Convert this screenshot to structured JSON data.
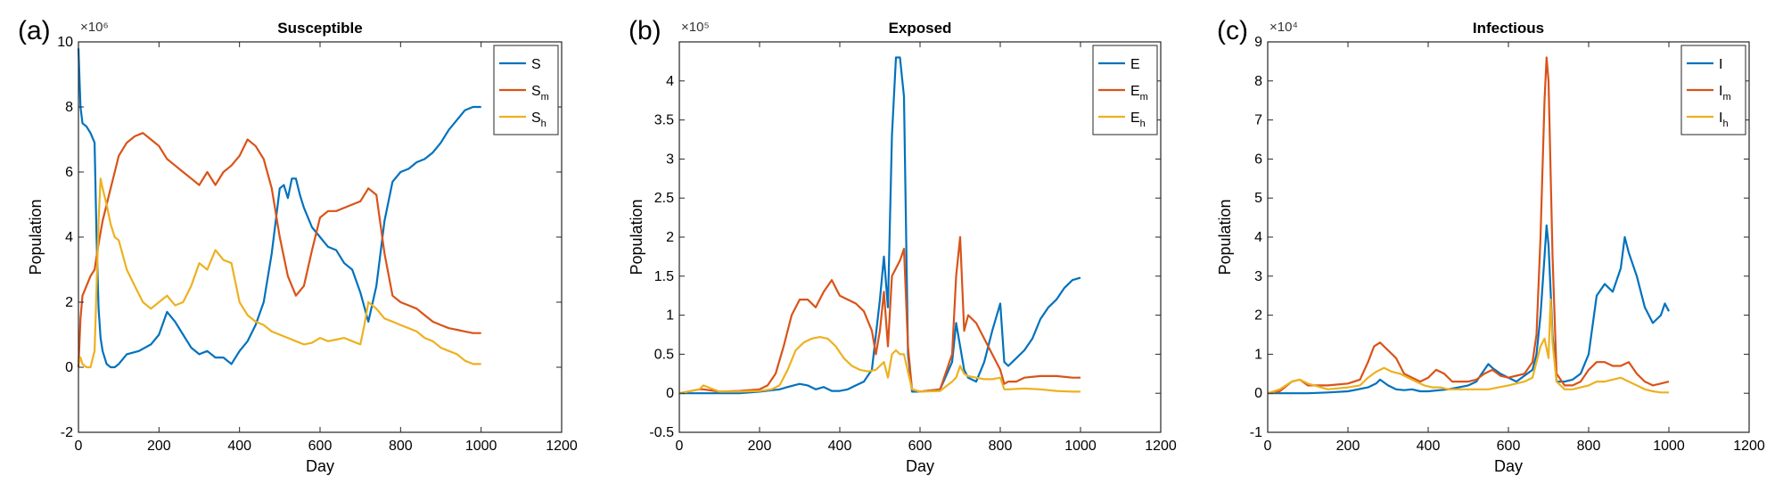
{
  "colors": {
    "s1": "#0072BD",
    "s2": "#D95319",
    "s3": "#EDB120"
  },
  "chart_data": [
    {
      "type": "line",
      "panel_label": "(a)",
      "title": "Susceptible",
      "xlabel": "Day",
      "ylabel": "Population",
      "exponent": "×10⁶",
      "xlim": [
        0,
        1200
      ],
      "ylim": [
        -2,
        10
      ],
      "xticks": [
        0,
        200,
        400,
        600,
        800,
        1000,
        1200
      ],
      "yticks": [
        -2,
        0,
        2,
        4,
        6,
        8,
        10
      ],
      "yticklabels": [
        "-2",
        "0",
        "2",
        "4",
        "6",
        "8",
        "10"
      ],
      "legend_position": "top-right",
      "series": [
        {
          "name": "S",
          "sub": "",
          "x": [
            0,
            5,
            10,
            20,
            30,
            40,
            45,
            50,
            55,
            60,
            70,
            80,
            90,
            100,
            120,
            150,
            180,
            200,
            220,
            240,
            260,
            280,
            300,
            320,
            340,
            360,
            380,
            400,
            420,
            440,
            460,
            480,
            500,
            510,
            520,
            530,
            540,
            550,
            560,
            580,
            600,
            620,
            640,
            660,
            680,
            700,
            720,
            740,
            760,
            780,
            800,
            820,
            840,
            860,
            880,
            900,
            920,
            940,
            960,
            980,
            1000
          ],
          "y": [
            9.8,
            8,
            7.5,
            7.4,
            7.2,
            6.9,
            4,
            1.8,
            0.9,
            0.5,
            0.1,
            0,
            0,
            0.1,
            0.4,
            0.5,
            0.7,
            1,
            1.7,
            1.4,
            1,
            0.6,
            0.4,
            0.5,
            0.3,
            0.3,
            0.1,
            0.5,
            0.8,
            1.3,
            2,
            3.5,
            5.5,
            5.6,
            5.2,
            5.8,
            5.8,
            5.3,
            4.9,
            4.3,
            4,
            3.7,
            3.6,
            3.2,
            3,
            2.3,
            1.4,
            2.5,
            4.5,
            5.7,
            6,
            6.1,
            6.3,
            6.4,
            6.6,
            6.9,
            7.3,
            7.6,
            7.9,
            8,
            8
          ]
        },
        {
          "name": "S",
          "sub": "m",
          "x": [
            0,
            5,
            10,
            20,
            30,
            40,
            50,
            60,
            70,
            80,
            90,
            100,
            120,
            140,
            160,
            180,
            200,
            220,
            240,
            260,
            280,
            300,
            320,
            340,
            360,
            380,
            400,
            420,
            440,
            460,
            480,
            500,
            520,
            540,
            560,
            580,
            600,
            620,
            640,
            660,
            680,
            700,
            720,
            740,
            760,
            780,
            800,
            820,
            840,
            860,
            880,
            900,
            920,
            940,
            960,
            980,
            1000
          ],
          "y": [
            0,
            1.5,
            2.2,
            2.5,
            2.8,
            3,
            3.8,
            4.5,
            5,
            5.5,
            6,
            6.5,
            6.9,
            7.1,
            7.2,
            7,
            6.8,
            6.4,
            6.2,
            6,
            5.8,
            5.6,
            6,
            5.6,
            6,
            6.2,
            6.5,
            7,
            6.8,
            6.4,
            5.5,
            4,
            2.8,
            2.2,
            2.5,
            3.6,
            4.6,
            4.8,
            4.8,
            4.9,
            5,
            5.1,
            5.5,
            5.3,
            3.5,
            2.2,
            2,
            1.9,
            1.8,
            1.6,
            1.4,
            1.3,
            1.2,
            1.15,
            1.1,
            1.05,
            1.05
          ]
        },
        {
          "name": "S",
          "sub": "h",
          "x": [
            0,
            5,
            10,
            20,
            30,
            40,
            50,
            55,
            60,
            70,
            80,
            90,
            100,
            120,
            140,
            160,
            180,
            200,
            220,
            240,
            260,
            280,
            300,
            320,
            340,
            360,
            380,
            400,
            420,
            440,
            460,
            480,
            500,
            520,
            540,
            560,
            580,
            600,
            620,
            640,
            660,
            680,
            700,
            710,
            720,
            740,
            760,
            780,
            800,
            820,
            840,
            860,
            880,
            900,
            920,
            940,
            960,
            980,
            1000
          ],
          "y": [
            0.1,
            0.3,
            0.1,
            0,
            0,
            0.5,
            4.5,
            5.8,
            5.5,
            5,
            4.4,
            4,
            3.9,
            3,
            2.5,
            2,
            1.8,
            2,
            2.2,
            1.9,
            2,
            2.5,
            3.2,
            3,
            3.6,
            3.3,
            3.2,
            2,
            1.6,
            1.4,
            1.3,
            1.1,
            1,
            0.9,
            0.8,
            0.7,
            0.75,
            0.9,
            0.8,
            0.85,
            0.9,
            0.8,
            0.7,
            1.3,
            2,
            1.8,
            1.5,
            1.4,
            1.3,
            1.2,
            1.1,
            0.9,
            0.8,
            0.6,
            0.5,
            0.4,
            0.2,
            0.1,
            0.1
          ]
        }
      ]
    },
    {
      "type": "line",
      "panel_label": "(b)",
      "title": "Exposed",
      "xlabel": "Day",
      "ylabel": "Population",
      "exponent": "×10⁵",
      "xlim": [
        0,
        1200
      ],
      "ylim": [
        -0.5,
        4.5
      ],
      "xticks": [
        0,
        200,
        400,
        600,
        800,
        1000,
        1200
      ],
      "yticks": [
        -0.5,
        0,
        0.5,
        1,
        1.5,
        2,
        2.5,
        3,
        3.5,
        4
      ],
      "yticklabels": [
        "-0.5",
        "0",
        "0.5",
        "1",
        "1.5",
        "2",
        "2.5",
        "3",
        "3.5",
        "4"
      ],
      "legend_position": "top-right",
      "series": [
        {
          "name": "E",
          "sub": "",
          "x": [
            0,
            50,
            100,
            150,
            200,
            250,
            270,
            300,
            320,
            340,
            360,
            380,
            400,
            420,
            440,
            460,
            480,
            500,
            510,
            520,
            530,
            540,
            550,
            560,
            570,
            580,
            600,
            650,
            680,
            690,
            700,
            710,
            720,
            740,
            760,
            780,
            800,
            810,
            820,
            840,
            860,
            880,
            900,
            920,
            940,
            960,
            980,
            1000
          ],
          "y": [
            0,
            0,
            0,
            0,
            0.02,
            0.05,
            0.08,
            0.12,
            0.1,
            0.05,
            0.08,
            0.03,
            0.03,
            0.05,
            0.1,
            0.15,
            0.3,
            1.2,
            1.75,
            1.1,
            3.3,
            4.3,
            4.3,
            3.8,
            0.5,
            0.02,
            0.02,
            0.05,
            0.4,
            0.9,
            0.6,
            0.3,
            0.2,
            0.15,
            0.4,
            0.8,
            1.15,
            0.4,
            0.35,
            0.45,
            0.55,
            0.7,
            0.95,
            1.1,
            1.2,
            1.35,
            1.45,
            1.48
          ]
        },
        {
          "name": "E",
          "sub": "m",
          "x": [
            0,
            50,
            60,
            100,
            150,
            200,
            220,
            240,
            260,
            280,
            300,
            320,
            340,
            360,
            380,
            400,
            420,
            440,
            460,
            480,
            490,
            500,
            510,
            520,
            530,
            540,
            550,
            560,
            570,
            580,
            600,
            650,
            680,
            690,
            700,
            710,
            720,
            740,
            760,
            780,
            800,
            810,
            820,
            840,
            860,
            900,
            940,
            980,
            1000
          ],
          "y": [
            0,
            0.05,
            0.05,
            0.02,
            0.03,
            0.05,
            0.1,
            0.25,
            0.6,
            1,
            1.2,
            1.2,
            1.1,
            1.3,
            1.45,
            1.25,
            1.2,
            1.15,
            1.05,
            0.8,
            0.5,
            0.8,
            1.3,
            0.6,
            1.5,
            1.6,
            1.7,
            1.85,
            0.6,
            0.05,
            0.02,
            0.05,
            0.5,
            1.5,
            2,
            0.8,
            1,
            0.9,
            0.7,
            0.5,
            0.3,
            0.12,
            0.15,
            0.15,
            0.2,
            0.22,
            0.22,
            0.2,
            0.2
          ]
        },
        {
          "name": "E",
          "sub": "h",
          "x": [
            0,
            50,
            60,
            100,
            150,
            200,
            230,
            250,
            270,
            290,
            310,
            330,
            350,
            370,
            390,
            410,
            430,
            450,
            470,
            490,
            500,
            510,
            520,
            530,
            540,
            550,
            560,
            580,
            600,
            650,
            680,
            690,
            700,
            710,
            720,
            740,
            760,
            780,
            800,
            810,
            820,
            860,
            900,
            940,
            980,
            1000
          ],
          "y": [
            0,
            0.05,
            0.1,
            0.02,
            0.02,
            0.03,
            0.05,
            0.1,
            0.3,
            0.55,
            0.65,
            0.7,
            0.72,
            0.7,
            0.6,
            0.45,
            0.35,
            0.3,
            0.28,
            0.3,
            0.35,
            0.4,
            0.2,
            0.5,
            0.55,
            0.5,
            0.5,
            0.05,
            0.02,
            0.03,
            0.15,
            0.2,
            0.35,
            0.25,
            0.22,
            0.2,
            0.18,
            0.18,
            0.2,
            0.05,
            0.05,
            0.06,
            0.05,
            0.03,
            0.02,
            0.02
          ]
        }
      ]
    },
    {
      "type": "line",
      "panel_label": "(c)",
      "title": "Infectious",
      "xlabel": "Day",
      "ylabel": "Population",
      "exponent": "×10⁴",
      "xlim": [
        0,
        1200
      ],
      "ylim": [
        -1,
        9
      ],
      "xticks": [
        0,
        200,
        400,
        600,
        800,
        1000,
        1200
      ],
      "yticks": [
        -1,
        0,
        1,
        2,
        3,
        4,
        5,
        6,
        7,
        8,
        9
      ],
      "yticklabels": [
        "-1",
        "0",
        "1",
        "2",
        "3",
        "4",
        "5",
        "6",
        "7",
        "8",
        "9"
      ],
      "legend_position": "top-right",
      "series": [
        {
          "name": "I",
          "sub": "",
          "x": [
            0,
            50,
            100,
            150,
            200,
            250,
            270,
            280,
            300,
            320,
            340,
            360,
            380,
            400,
            450,
            500,
            520,
            540,
            550,
            560,
            580,
            600,
            620,
            640,
            660,
            670,
            680,
            690,
            695,
            700,
            710,
            720,
            740,
            760,
            780,
            800,
            820,
            840,
            860,
            880,
            890,
            900,
            920,
            940,
            960,
            980,
            990,
            1000
          ],
          "y": [
            0,
            0,
            0,
            0.02,
            0.05,
            0.15,
            0.25,
            0.35,
            0.2,
            0.1,
            0.08,
            0.1,
            0.05,
            0.05,
            0.1,
            0.2,
            0.3,
            0.6,
            0.75,
            0.65,
            0.5,
            0.4,
            0.3,
            0.45,
            0.6,
            1,
            2,
            3.5,
            4.3,
            3.8,
            1.5,
            0.3,
            0.3,
            0.35,
            0.5,
            1,
            2.5,
            2.8,
            2.6,
            3.2,
            4,
            3.6,
            3,
            2.2,
            1.8,
            2,
            2.3,
            2.1
          ]
        },
        {
          "name": "I",
          "sub": "m",
          "x": [
            0,
            30,
            60,
            80,
            100,
            150,
            200,
            230,
            250,
            265,
            280,
            300,
            320,
            340,
            360,
            380,
            400,
            420,
            440,
            460,
            480,
            500,
            520,
            540,
            560,
            580,
            600,
            620,
            640,
            660,
            670,
            680,
            690,
            695,
            700,
            710,
            720,
            740,
            760,
            780,
            800,
            820,
            840,
            860,
            880,
            900,
            920,
            940,
            960,
            980,
            1000
          ],
          "y": [
            0,
            0.05,
            0.3,
            0.35,
            0.2,
            0.2,
            0.25,
            0.35,
            0.8,
            1.2,
            1.3,
            1.1,
            0.9,
            0.5,
            0.4,
            0.3,
            0.4,
            0.6,
            0.5,
            0.3,
            0.3,
            0.3,
            0.35,
            0.5,
            0.6,
            0.45,
            0.4,
            0.45,
            0.5,
            0.8,
            1.5,
            4,
            7.5,
            8.6,
            8,
            3.5,
            0.5,
            0.2,
            0.2,
            0.3,
            0.6,
            0.8,
            0.8,
            0.7,
            0.7,
            0.8,
            0.5,
            0.3,
            0.2,
            0.25,
            0.3
          ]
        },
        {
          "name": "I",
          "sub": "h",
          "x": [
            0,
            30,
            60,
            80,
            100,
            150,
            200,
            230,
            250,
            270,
            290,
            310,
            330,
            350,
            370,
            390,
            410,
            430,
            450,
            480,
            500,
            550,
            600,
            640,
            660,
            670,
            680,
            690,
            700,
            705,
            710,
            720,
            740,
            760,
            780,
            800,
            820,
            840,
            860,
            880,
            900,
            920,
            940,
            960,
            980,
            1000
          ],
          "y": [
            0,
            0.1,
            0.3,
            0.35,
            0.25,
            0.1,
            0.15,
            0.2,
            0.4,
            0.55,
            0.65,
            0.55,
            0.5,
            0.4,
            0.3,
            0.2,
            0.15,
            0.15,
            0.1,
            0.1,
            0.1,
            0.1,
            0.2,
            0.3,
            0.4,
            0.8,
            1.2,
            1.4,
            0.9,
            2.4,
            1.3,
            0.3,
            0.1,
            0.1,
            0.15,
            0.2,
            0.3,
            0.3,
            0.35,
            0.4,
            0.3,
            0.2,
            0.1,
            0.05,
            0.02,
            0.02
          ]
        }
      ]
    }
  ]
}
